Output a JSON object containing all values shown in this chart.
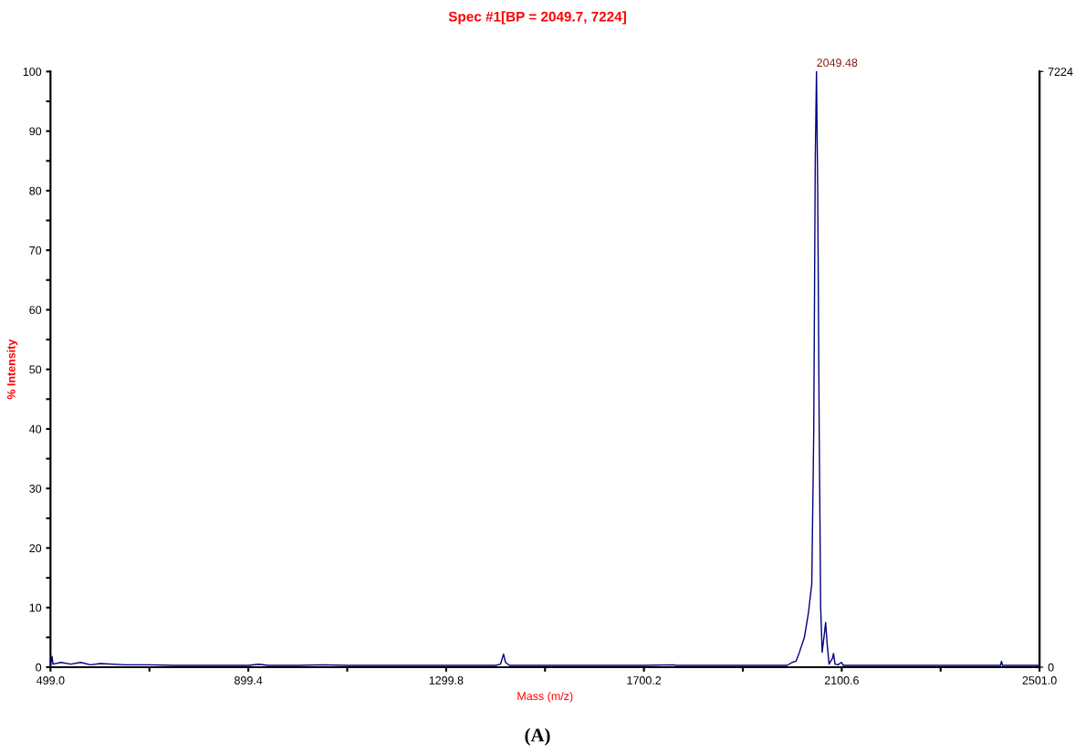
{
  "chart_data": {
    "type": "line",
    "title": "Spec #1[BP = 2049.7, 7224]",
    "xlabel": "Mass (m/z)",
    "ylabel": "% Intensity",
    "xlim": [
      499.0,
      2501.0
    ],
    "xticks": [
      {
        "value": 499.0,
        "label": "499.0"
      },
      {
        "value": 699.2,
        "label": null
      },
      {
        "value": 899.4,
        "label": "899.4"
      },
      {
        "value": 1099.6,
        "label": null
      },
      {
        "value": 1299.8,
        "label": "1299.8"
      },
      {
        "value": 1500.0,
        "label": null
      },
      {
        "value": 1700.2,
        "label": "1700.2"
      },
      {
        "value": 1900.4,
        "label": null
      },
      {
        "value": 2100.6,
        "label": "2100.6"
      },
      {
        "value": 2300.8,
        "label": null
      },
      {
        "value": 2501.0,
        "label": "2501.0"
      }
    ],
    "ylim": [
      0,
      100
    ],
    "yticks": [
      0,
      {
        "value": 5,
        "label": null
      },
      10,
      {
        "value": 15,
        "label": null
      },
      20,
      {
        "value": 25,
        "label": null
      },
      30,
      {
        "value": 35,
        "label": null
      },
      40,
      {
        "value": 45,
        "label": null
      },
      50,
      {
        "value": 55,
        "label": null
      },
      60,
      {
        "value": 65,
        "label": null
      },
      70,
      {
        "value": 75,
        "label": null
      },
      80,
      {
        "value": 85,
        "label": null
      },
      90,
      {
        "value": 95,
        "label": null
      },
      100
    ],
    "y2lim": [
      0,
      7224
    ],
    "y2ticks": [
      0,
      7224
    ],
    "grid": false,
    "legend": false,
    "marker": "none",
    "line_style": "solid",
    "x": [
      499,
      502,
      504,
      520,
      540,
      560,
      580,
      600,
      650,
      700,
      750,
      800,
      850,
      900,
      920,
      940,
      1000,
      1050,
      1100,
      1200,
      1300,
      1400,
      1410,
      1416,
      1420,
      1428,
      1500,
      1600,
      1700,
      1760,
      1765,
      1900,
      1990,
      2000,
      2008,
      2015,
      2025,
      2033,
      2040,
      2044,
      2047,
      2049.5,
      2052,
      2055,
      2058,
      2061,
      2066,
      2068,
      2071,
      2075,
      2082,
      2084,
      2087,
      2093,
      2100,
      2104,
      2150,
      2300,
      2422,
      2424,
      2426,
      2501
    ],
    "series": [
      {
        "color": "#000080",
        "values": [
          0.3,
          1.8,
          0.5,
          0.8,
          0.5,
          0.8,
          0.4,
          0.6,
          0.4,
          0.4,
          0.3,
          0.3,
          0.3,
          0.3,
          0.5,
          0.3,
          0.3,
          0.4,
          0.3,
          0.3,
          0.3,
          0.3,
          0.5,
          2.2,
          0.8,
          0.3,
          0.3,
          0.3,
          0.3,
          0.4,
          0.3,
          0.3,
          0.3,
          0.8,
          1.0,
          2.5,
          5,
          9,
          14,
          40,
          85,
          100,
          80,
          40,
          10,
          2.5,
          6,
          7.5,
          4,
          0.5,
          1.5,
          2.3,
          0.5,
          0.4,
          0.8,
          0.3,
          0.3,
          0.3,
          0.3,
          1.0,
          0.3,
          0.3
        ]
      }
    ],
    "annotations": [
      {
        "text": "2049.48",
        "x": 2049.5,
        "y": 100
      },
      "(A)"
    ]
  }
}
